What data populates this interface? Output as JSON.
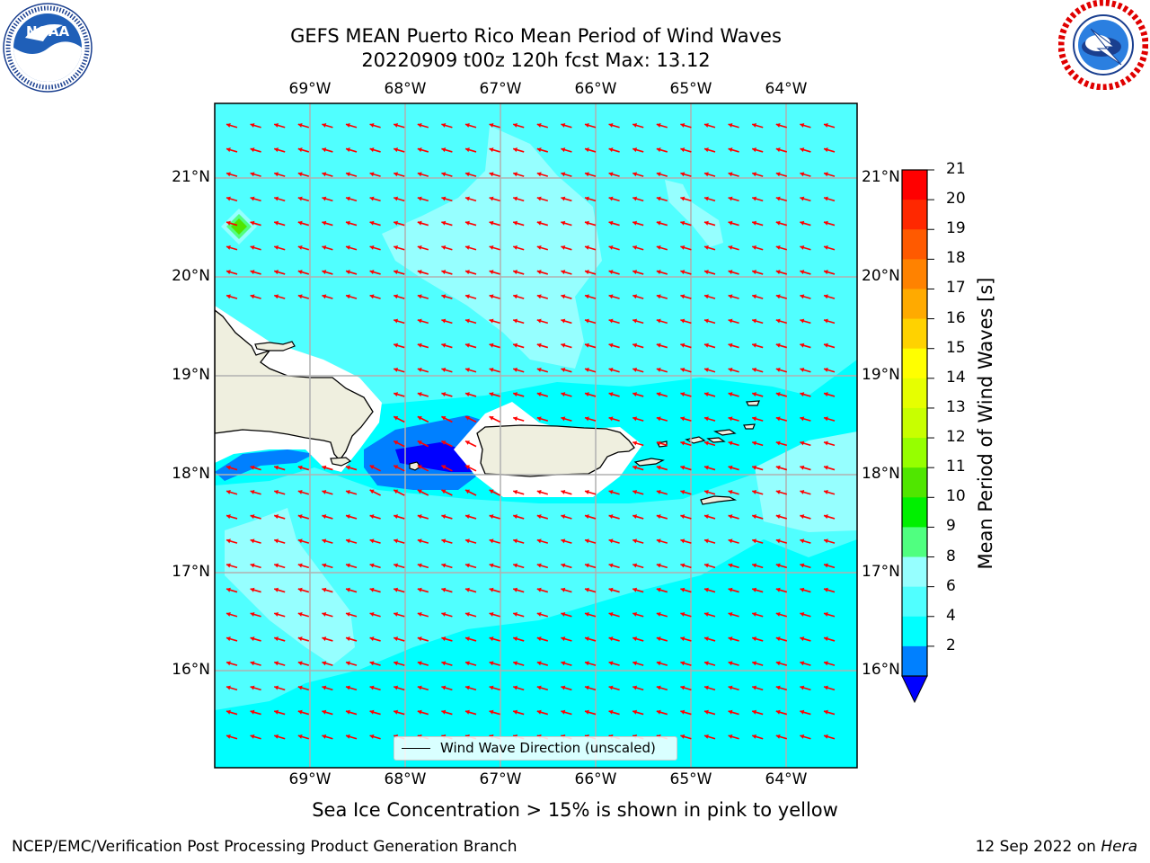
{
  "header": {
    "title_line1": "GEFS MEAN Puerto Rico Mean Period of Wind Waves",
    "title_line2": "20220909 t00z 120h fcst   Max: 13.12"
  },
  "logos": {
    "left": {
      "text": "NOAA",
      "ring_text": "NATIONAL OCEANIC AND ATMOSPHERIC ADMINISTRATION · U.S. DEPARTMENT OF COMMERCE"
    },
    "right": {
      "ring_text": "NATIONAL WEATHER SERVICE"
    }
  },
  "map": {
    "lon_ticks": [
      "69°W",
      "68°W",
      "67°W",
      "66°W",
      "65°W",
      "64°W"
    ],
    "lat_ticks": [
      "21°N",
      "20°N",
      "19°N",
      "18°N",
      "17°N",
      "16°N"
    ],
    "land_color": "#efefdf",
    "ocean_color": "#00ffff",
    "arrow_color": "#ff0000",
    "grid_color": "#b0b0b0"
  },
  "colorbar": {
    "label": "Mean Period of Wind Waves [s]",
    "tick_labels": [
      "21",
      "20",
      "19",
      "18",
      "17",
      "16",
      "15",
      "14",
      "13",
      "12",
      "11",
      "10",
      "9",
      "8",
      "6",
      "4",
      "2"
    ],
    "bins_top_to_bottom": [
      "#ff0000",
      "#ff2800",
      "#ff5a00",
      "#ff8200",
      "#ffaa00",
      "#ffd200",
      "#ffff00",
      "#e6ff00",
      "#c8ff00",
      "#96ff00",
      "#50e600",
      "#00f000",
      "#50ff80",
      "#96ffff",
      "#50ffff",
      "#00ffff",
      "#0080ff"
    ],
    "extend_color": "#0000ff"
  },
  "legend": {
    "label": "Wind Wave Direction (unscaled)"
  },
  "footer": {
    "ice_note": "Sea Ice Concentration > 15% is shown in pink to yellow",
    "left": "NCEP/EMC/Verification Post Processing Product Generation Branch",
    "date": "12 Sep 2022 on",
    "host": "Hera"
  }
}
